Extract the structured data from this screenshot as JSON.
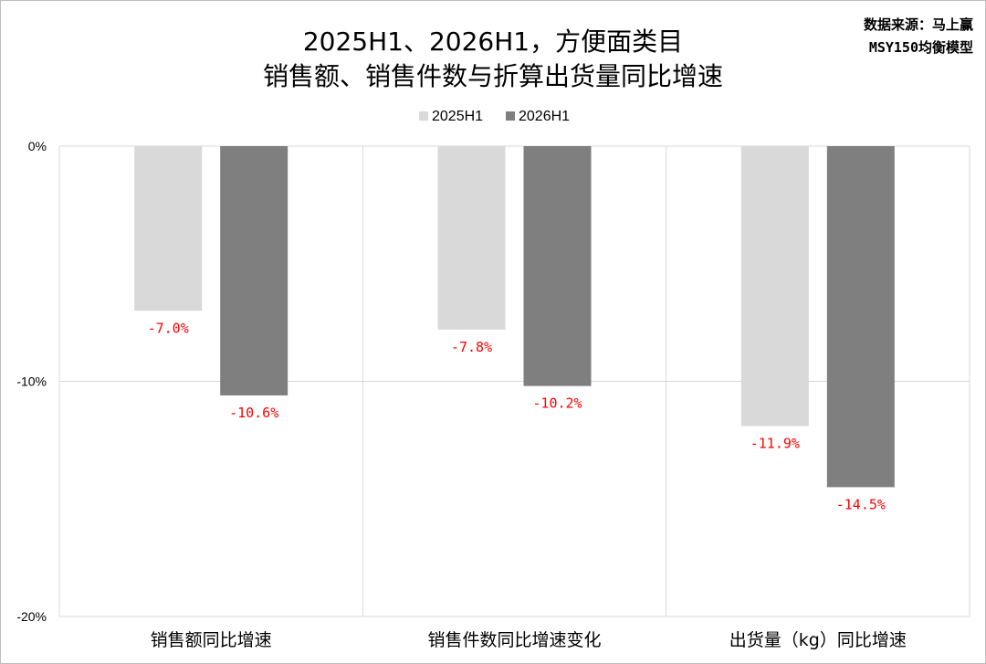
{
  "source": {
    "line1": "数据来源：马上赢",
    "line2": "MSY150均衡模型"
  },
  "chart_data": {
    "type": "bar",
    "title": [
      "2025H1、2026H1，方便面类目",
      "销售额、销售件数与折算出货量同比增速"
    ],
    "categories": [
      "销售额同比增速",
      "销售件数同比增速变化",
      "出货量（kg）同比增速"
    ],
    "series": [
      {
        "name": "2025H1",
        "values": [
          -7.0,
          -7.8,
          -11.9
        ],
        "labels": [
          "-7.0%",
          "-7.8%",
          "-11.9%"
        ],
        "color": "#d9d9d9"
      },
      {
        "name": "2026H1",
        "values": [
          -10.6,
          -10.2,
          -14.5
        ],
        "labels": [
          "-10.6%",
          "-10.2%",
          "-14.5%"
        ],
        "color": "#7f7f7f"
      }
    ],
    "ylim": [
      -20,
      0
    ],
    "yticks": [
      0,
      -10,
      -20
    ],
    "ytick_labels": [
      "0%",
      "-10%",
      "-20%"
    ],
    "grid": true,
    "legend_position": "top-center",
    "data_label_color": "#ff0000"
  }
}
